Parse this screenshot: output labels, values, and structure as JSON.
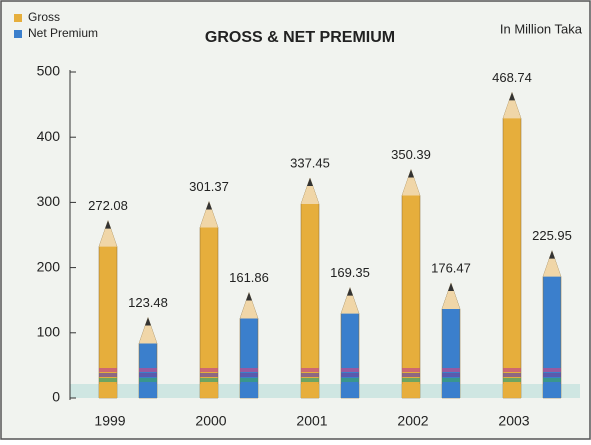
{
  "chart_data": {
    "type": "pencil-bar",
    "title": "GROSS & NET PREMIUM",
    "unit_note": "In Million Taka",
    "categories": [
      "1999",
      "2000",
      "2001",
      "2002",
      "2003"
    ],
    "series": [
      {
        "name": "Gross",
        "color": "#e6ae3c",
        "values": [
          272.08,
          301.37,
          337.45,
          350.39,
          468.74
        ]
      },
      {
        "name": "Net Premium",
        "color": "#3b7fcc",
        "values": [
          123.48,
          161.86,
          169.35,
          176.47,
          225.95
        ]
      }
    ],
    "ylim": [
      0,
      500
    ],
    "yticks": [
      0,
      100,
      200,
      300,
      400,
      500
    ],
    "legend": "top-left"
  }
}
